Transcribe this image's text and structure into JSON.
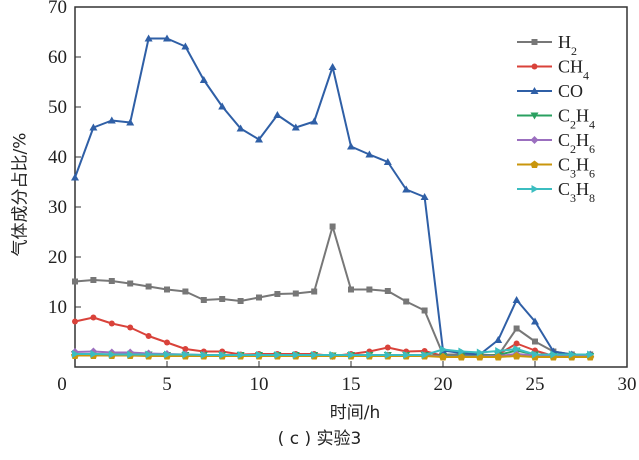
{
  "chart_data": {
    "type": "line",
    "title": "",
    "caption": "( c ) 实验3",
    "xlabel": "时间/h",
    "ylabel": "气体成分占比/%",
    "xlim": [
      0,
      30
    ],
    "ylim": [
      -2,
      70
    ],
    "xticks": [
      0,
      5,
      10,
      15,
      20,
      25,
      30
    ],
    "yticks": [
      10,
      20,
      30,
      40,
      50,
      60,
      70
    ],
    "grid": false,
    "legend_position": "top-right",
    "x": [
      0,
      1,
      2,
      3,
      4,
      5,
      6,
      7,
      8,
      9,
      10,
      11,
      12,
      13,
      14,
      15,
      16,
      17,
      18,
      19,
      20,
      21,
      22,
      23,
      24,
      25,
      26,
      27,
      28
    ],
    "series": [
      {
        "name": "H2",
        "color": "#777777",
        "marker": "square",
        "values": [
          15.1,
          15.4,
          15.2,
          14.7,
          14.1,
          13.5,
          13.1,
          11.4,
          11.6,
          11.2,
          11.9,
          12.6,
          12.7,
          13.1,
          26.1,
          13.5,
          13.5,
          13.2,
          11.1,
          9.3,
          0.5,
          0.5,
          0.5,
          0.3,
          5.7,
          3.1,
          1.1,
          0.5,
          0.5
        ]
      },
      {
        "name": "CH4",
        "color": "#d9423a",
        "marker": "circle",
        "values": [
          7.1,
          7.9,
          6.7,
          5.9,
          4.2,
          2.9,
          1.6,
          1.1,
          1.1,
          0.5,
          0.6,
          0.6,
          0.6,
          0.6,
          0.2,
          0.6,
          1.1,
          1.9,
          1.1,
          1.2,
          0.2,
          0.1,
          0.1,
          0.5,
          2.7,
          1.3,
          0.2,
          0.2,
          0.2
        ]
      },
      {
        "name": "CO",
        "color": "#2f5fa6",
        "marker": "triangle-up",
        "values": [
          35.9,
          45.9,
          47.3,
          46.9,
          63.7,
          63.7,
          62.1,
          55.4,
          50.1,
          45.7,
          43.5,
          48.4,
          45.9,
          47.1,
          58.0,
          42.1,
          40.5,
          39.0,
          33.5,
          32.0,
          1.3,
          0.8,
          0.5,
          3.4,
          11.4,
          7.1,
          1.1,
          0.5,
          0.5
        ]
      },
      {
        "name": "C2H4",
        "color": "#2aa060",
        "marker": "triangle-down",
        "values": [
          0.6,
          0.6,
          0.5,
          0.5,
          0.5,
          0.4,
          0.4,
          0.4,
          0.4,
          0.4,
          0.4,
          0.4,
          0.4,
          0.4,
          0.3,
          0.4,
          0.4,
          0.4,
          0.4,
          0.4,
          0.2,
          0.2,
          0.2,
          0.4,
          1.3,
          0.5,
          0.2,
          0.2,
          0.2
        ]
      },
      {
        "name": "C2H6",
        "color": "#9b6fbf",
        "marker": "diamond",
        "values": [
          1.0,
          1.1,
          0.9,
          0.9,
          0.7,
          0.6,
          0.5,
          0.4,
          0.4,
          0.3,
          0.3,
          0.3,
          0.3,
          0.3,
          0.2,
          0.3,
          0.3,
          0.3,
          0.3,
          0.3,
          0.1,
          0.1,
          0.1,
          0.2,
          0.6,
          0.3,
          0.1,
          0.1,
          0.1
        ]
      },
      {
        "name": "C3H6",
        "color": "#c9960c",
        "marker": "pentagon",
        "values": [
          0.3,
          0.3,
          0.3,
          0.3,
          0.2,
          0.2,
          0.2,
          0.2,
          0.2,
          0.2,
          0.2,
          0.2,
          0.2,
          0.2,
          0.2,
          0.2,
          0.2,
          0.2,
          0.2,
          0.2,
          0.0,
          0.0,
          0.0,
          0.0,
          0.2,
          0.0,
          0.0,
          0.0,
          0.0
        ]
      },
      {
        "name": "C3H8",
        "color": "#3bbdc0",
        "marker": "triangle-right",
        "values": [
          0.6,
          0.6,
          0.5,
          0.5,
          0.5,
          0.5,
          0.5,
          0.4,
          0.4,
          0.4,
          0.4,
          0.4,
          0.4,
          0.4,
          0.4,
          0.4,
          0.4,
          0.4,
          0.4,
          0.4,
          1.5,
          1.1,
          0.9,
          1.2,
          1.6,
          0.5,
          0.5,
          0.5,
          0.5
        ]
      }
    ]
  }
}
